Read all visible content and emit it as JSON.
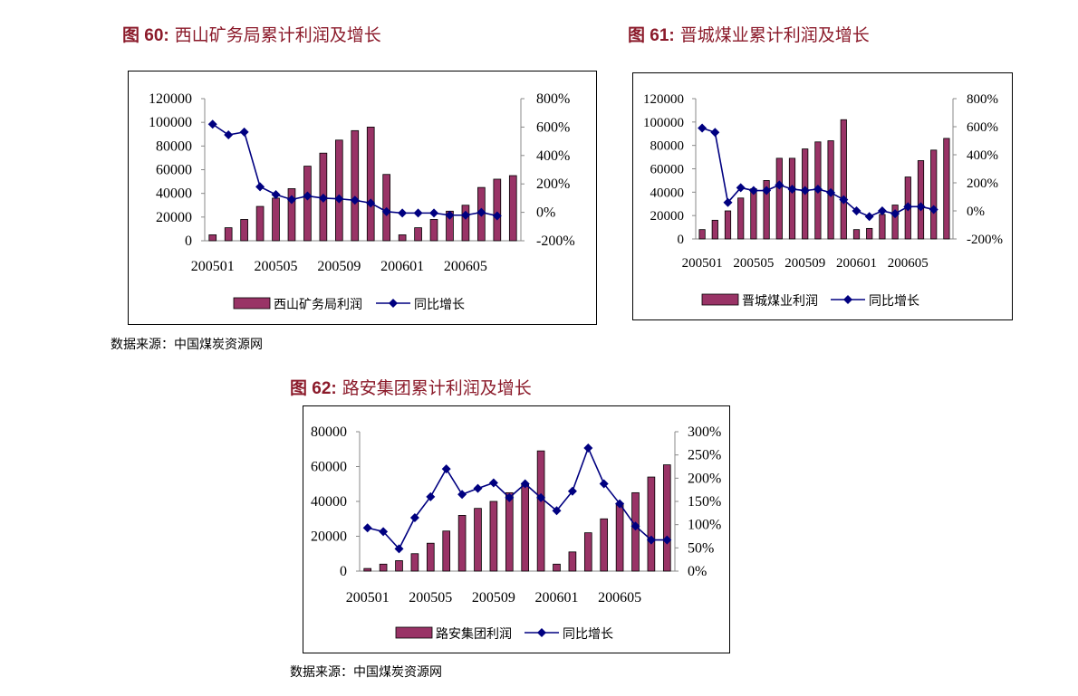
{
  "figures": [
    {
      "label": "图 60:",
      "title": "西山矿务局累计利润及增长"
    },
    {
      "label": "图 61:",
      "title": "晋城煤业累计利润及增长"
    },
    {
      "label": "图 62:",
      "title": "路安集团累计利润及增长"
    }
  ],
  "sources": [
    "数据来源：中国煤炭资源网",
    "数据来源：中国煤炭资源网"
  ],
  "colors": {
    "bar": "#993366",
    "line": "#000080",
    "title": "#8b1a2a"
  },
  "chart_data": [
    {
      "type": "bar",
      "x": [
        "200501",
        "200502",
        "200503",
        "200504",
        "200505",
        "200506",
        "200507",
        "200508",
        "200509",
        "200510",
        "200511",
        "200512",
        "200601",
        "200602",
        "200603",
        "200604",
        "200605",
        "200606",
        "200607",
        "200608"
      ],
      "x_ticks": [
        "200501",
        "200505",
        "200509",
        "200601",
        "200605"
      ],
      "series": [
        {
          "name": "西山矿务局利润",
          "type": "bar",
          "axis": "left",
          "values": [
            5000,
            11000,
            18000,
            29000,
            36000,
            44000,
            63000,
            74000,
            85000,
            93000,
            96000,
            56000,
            5000,
            11000,
            18000,
            25000,
            30000,
            45000,
            52000,
            55000
          ]
        },
        {
          "name": "同比增长",
          "type": "line",
          "axis": "right",
          "values": [
            620,
            545,
            565,
            180,
            125,
            90,
            115,
            100,
            95,
            85,
            65,
            5,
            -5,
            -5,
            -5,
            -20,
            -20,
            0,
            -25,
            null
          ]
        }
      ],
      "y_left": {
        "min": 0,
        "max": 120000,
        "step": 20000,
        "ticks": [
          "120000",
          "100000",
          "80000",
          "60000",
          "40000",
          "20000",
          "0"
        ]
      },
      "y_right": {
        "min": -200,
        "max": 800,
        "step": 200,
        "ticks": [
          "800%",
          "600%",
          "400%",
          "200%",
          "0%",
          "-200%"
        ]
      }
    },
    {
      "type": "bar",
      "x": [
        "200501",
        "200502",
        "200503",
        "200504",
        "200505",
        "200506",
        "200507",
        "200508",
        "200509",
        "200510",
        "200511",
        "200512",
        "200601",
        "200602",
        "200603",
        "200604",
        "200605",
        "200606",
        "200607",
        "200608"
      ],
      "x_ticks": [
        "200501",
        "200505",
        "200509",
        "200601",
        "200605"
      ],
      "series": [
        {
          "name": "晋城煤业利润",
          "type": "bar",
          "axis": "left",
          "values": [
            8000,
            16000,
            24000,
            35000,
            43000,
            50000,
            69000,
            69000,
            77000,
            83000,
            84000,
            102000,
            8000,
            9000,
            21000,
            29000,
            53000,
            67000,
            76000,
            86000
          ]
        },
        {
          "name": "同比增长",
          "type": "line",
          "axis": "right",
          "values": [
            590,
            560,
            60,
            165,
            145,
            145,
            185,
            155,
            145,
            155,
            130,
            80,
            0,
            -40,
            0,
            -20,
            30,
            30,
            10,
            null
          ]
        }
      ],
      "y_left": {
        "min": 0,
        "max": 120000,
        "step": 20000,
        "ticks": [
          "120000",
          "100000",
          "80000",
          "60000",
          "40000",
          "20000",
          "0"
        ]
      },
      "y_right": {
        "min": -200,
        "max": 800,
        "step": 200,
        "ticks": [
          "800%",
          "600%",
          "400%",
          "200%",
          "0%",
          "-200%"
        ]
      }
    },
    {
      "type": "bar",
      "x": [
        "200501",
        "200502",
        "200503",
        "200504",
        "200505",
        "200506",
        "200507",
        "200508",
        "200509",
        "200510",
        "200511",
        "200512",
        "200601",
        "200602",
        "200603",
        "200604",
        "200605",
        "200606",
        "200607",
        "200608"
      ],
      "x_ticks": [
        "200501",
        "200505",
        "200509",
        "200601",
        "200605"
      ],
      "series": [
        {
          "name": "路安集团利润",
          "type": "bar",
          "axis": "left",
          "values": [
            1500,
            4000,
            6000,
            10000,
            16000,
            23000,
            32000,
            36000,
            40000,
            45000,
            50000,
            69000,
            4000,
            11000,
            22000,
            30000,
            39000,
            45000,
            54000,
            61000
          ]
        },
        {
          "name": "同比增长",
          "type": "line",
          "axis": "right",
          "values": [
            93,
            85,
            48,
            115,
            160,
            220,
            165,
            178,
            190,
            158,
            188,
            158,
            130,
            172,
            265,
            188,
            145,
            97,
            67,
            67
          ]
        }
      ],
      "y_left": {
        "min": 0,
        "max": 80000,
        "step": 20000,
        "ticks": [
          "80000",
          "60000",
          "40000",
          "20000",
          "0"
        ]
      },
      "y_right": {
        "min": 0,
        "max": 300,
        "step": 50,
        "ticks": [
          "300%",
          "250%",
          "200%",
          "150%",
          "100%",
          "50%",
          "0%"
        ]
      }
    }
  ]
}
